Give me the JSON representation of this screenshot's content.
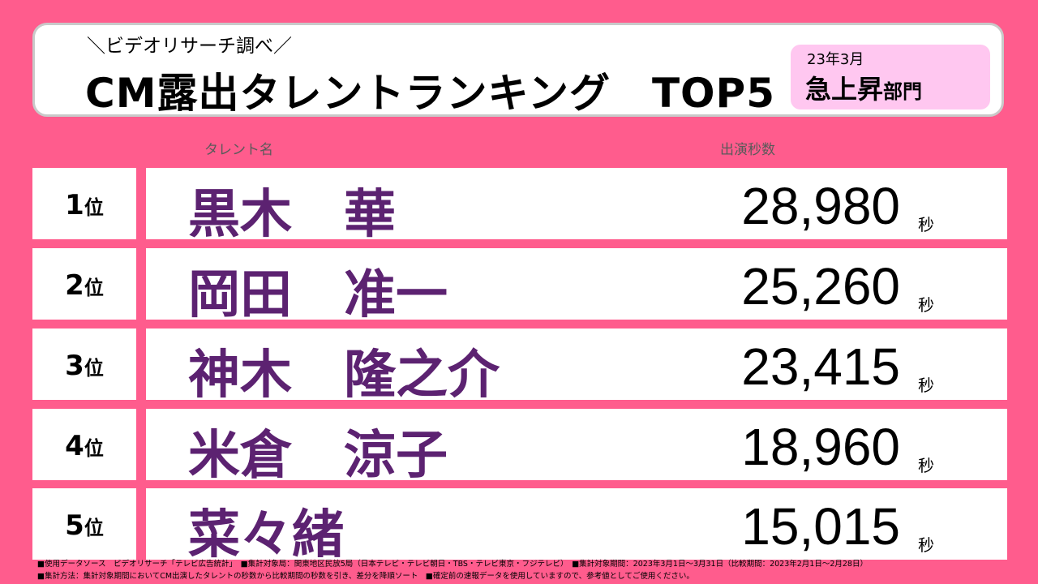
{
  "header": {
    "subtitle": "＼ビデオリサーチ調べ／",
    "title": "CM露出タレントランキング　TOP5",
    "badge_date": "23年3月",
    "badge_big": "急上昇",
    "badge_small": "部門"
  },
  "columns": {
    "name": "タレント名",
    "seconds": "出演秒数"
  },
  "rank_suffix": "位",
  "unit": "秒",
  "rankings": [
    {
      "rank": "1",
      "name": "黒木　華",
      "seconds": "28,980"
    },
    {
      "rank": "2",
      "name": "岡田　准一",
      "seconds": "25,260"
    },
    {
      "rank": "3",
      "name": "神木　隆之介",
      "seconds": "23,415"
    },
    {
      "rank": "4",
      "name": "米倉　涼子",
      "seconds": "18,960"
    },
    {
      "rank": "5",
      "name": "菜々緒",
      "seconds": "15,015"
    }
  ],
  "footer": {
    "line1": "■使用データソース　ビデオリサーチ「テレビ広告統計」　■集計対象局：関東地区民放5局（日本テレビ・テレビ朝日・TBS・テレビ東京・フジテレビ）　■集計対象期間：2023年3月1日～3月31日（比較期間：2023年2月1日～2月28日）",
    "line2": "■集計方法：集計対象期間においてCM出演したタレントの秒数から比較期間の秒数を引き、差分を降順ソート　■確定前の速報データを使用していますので、参考値としてご使用ください。"
  }
}
